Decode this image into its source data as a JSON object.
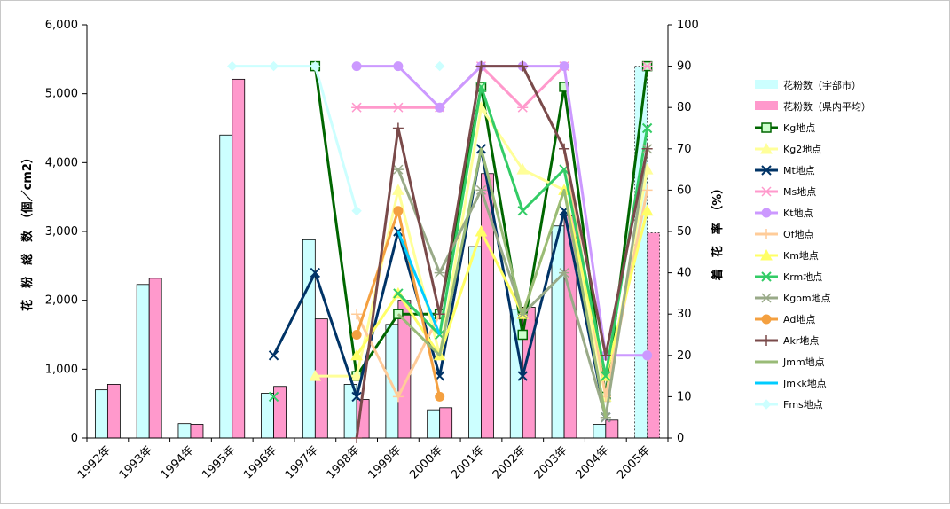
{
  "chart_data": {
    "type": "bar",
    "categories": [
      "1992年",
      "1993年",
      "1994年",
      "1995年",
      "1996年",
      "1997年",
      "1998年",
      "1999年",
      "2000年",
      "2001年",
      "2002年",
      "2003年",
      "2004年",
      "2005年"
    ],
    "y_left": {
      "label": "花　粉　総　数　（個／cm2）",
      "min": 0,
      "max": 6000,
      "ticks": [
        "0",
        "1,000",
        "2,000",
        "3,000",
        "4,000",
        "5,000",
        "6,000"
      ]
    },
    "y_right": {
      "label": "着　花　率　（%）",
      "min": 0,
      "max": 100,
      "ticks": [
        "0",
        "10",
        "20",
        "30",
        "40",
        "50",
        "60",
        "70",
        "80",
        "90",
        "100"
      ]
    },
    "bar_series": [
      {
        "name": "花粉数（宇部市）",
        "color": "#ccffff",
        "values": [
          700,
          2230,
          210,
          4400,
          650,
          2880,
          780,
          1650,
          410,
          2780,
          1870,
          3080,
          200,
          5400
        ]
      },
      {
        "name": "花粉数（県内平均）",
        "color": "#ff99cc",
        "values": [
          780,
          2320,
          200,
          5210,
          750,
          1730,
          560,
          2000,
          440,
          3840,
          1900,
          3230,
          260,
          2980
        ]
      }
    ],
    "line_series": [
      {
        "name": "Kg地点",
        "color": "#006600",
        "marker": "square",
        "values": [
          null,
          null,
          null,
          null,
          null,
          90,
          15,
          30,
          30,
          85,
          25,
          85,
          10,
          90
        ]
      },
      {
        "name": "Kg2地点",
        "color": "#ffff99",
        "marker": "triangle",
        "values": [
          null,
          null,
          null,
          null,
          null,
          15,
          15,
          60,
          20,
          80,
          65,
          60,
          10,
          65
        ]
      },
      {
        "name": "Mt地点",
        "color": "#003366",
        "marker": "x",
        "values": [
          null,
          null,
          null,
          null,
          20,
          40,
          10,
          50,
          15,
          70,
          15,
          55,
          5,
          null
        ]
      },
      {
        "name": "Ms地点",
        "color": "#ff99cc",
        "marker": "star",
        "values": [
          null,
          null,
          null,
          null,
          null,
          null,
          80,
          80,
          80,
          90,
          80,
          90,
          null,
          90
        ]
      },
      {
        "name": "Kt地点",
        "color": "#cc99ff",
        "marker": "circle",
        "values": [
          null,
          null,
          null,
          null,
          null,
          null,
          90,
          90,
          80,
          90,
          90,
          90,
          20,
          20
        ]
      },
      {
        "name": "Of地点",
        "color": "#ffcc99",
        "marker": "plus",
        "values": [
          null,
          null,
          null,
          null,
          null,
          null,
          30,
          10,
          30,
          null,
          null,
          70,
          10,
          60
        ]
      },
      {
        "name": "Km地点",
        "color": "#ffff66",
        "marker": "triangle",
        "values": [
          null,
          null,
          null,
          null,
          null,
          null,
          20,
          35,
          20,
          50,
          30,
          60,
          15,
          55
        ]
      },
      {
        "name": "Krm地点",
        "color": "#33cc66",
        "marker": "x",
        "values": [
          null,
          null,
          null,
          null,
          10,
          null,
          null,
          35,
          25,
          85,
          55,
          65,
          15,
          75
        ]
      },
      {
        "name": "Kgom地点",
        "color": "#99aa88",
        "marker": "star",
        "values": [
          null,
          null,
          null,
          null,
          null,
          null,
          null,
          65,
          40,
          60,
          30,
          40,
          5,
          70
        ]
      },
      {
        "name": "Ad地点",
        "color": "#f4a040",
        "marker": "circle",
        "values": [
          null,
          null,
          null,
          null,
          null,
          null,
          25,
          55,
          10,
          null,
          null,
          null,
          null,
          null
        ]
      },
      {
        "name": "Akr地点",
        "color": "#7a4a4a",
        "marker": "plus",
        "values": [
          null,
          null,
          null,
          null,
          null,
          null,
          0,
          75,
          30,
          90,
          90,
          70,
          20,
          70
        ]
      },
      {
        "name": "Jmm地点",
        "color": "#99bb77",
        "marker": "none",
        "values": [
          null,
          null,
          null,
          null,
          null,
          null,
          null,
          30,
          20,
          70,
          30,
          60,
          5,
          null
        ]
      },
      {
        "name": "Jmkk地点",
        "color": "#00ccff",
        "marker": "none",
        "values": [
          null,
          null,
          null,
          null,
          null,
          null,
          null,
          50,
          25,
          null,
          null,
          null,
          null,
          null
        ]
      },
      {
        "name": "Fms地点",
        "color": "#ccffff",
        "marker": "diamond",
        "values": [
          null,
          null,
          null,
          90,
          90,
          90,
          55,
          null,
          90,
          null,
          null,
          null,
          null,
          null
        ]
      }
    ],
    "legend_position": "right",
    "grid": false
  }
}
